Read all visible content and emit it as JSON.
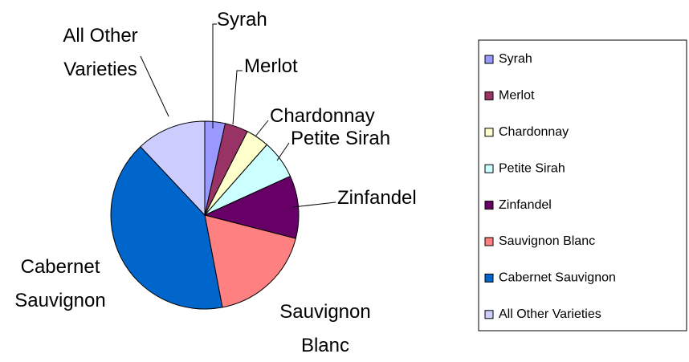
{
  "chart_data": {
    "type": "pie",
    "categories": [
      "Syrah",
      "Merlot",
      "Chardonnay",
      "Petite Sirah",
      "Zinfandel",
      "Sauvignon Blanc",
      "Cabernet Sauvignon",
      "All Other Varieties"
    ],
    "values": [
      3.5,
      4,
      4,
      6.7,
      10.8,
      18,
      41,
      12
    ],
    "colors": [
      "#9999ff",
      "#993366",
      "#ffffcc",
      "#ccffff",
      "#660066",
      "#ff8080",
      "#0066cc",
      "#ccccff"
    ],
    "legend": "right"
  }
}
